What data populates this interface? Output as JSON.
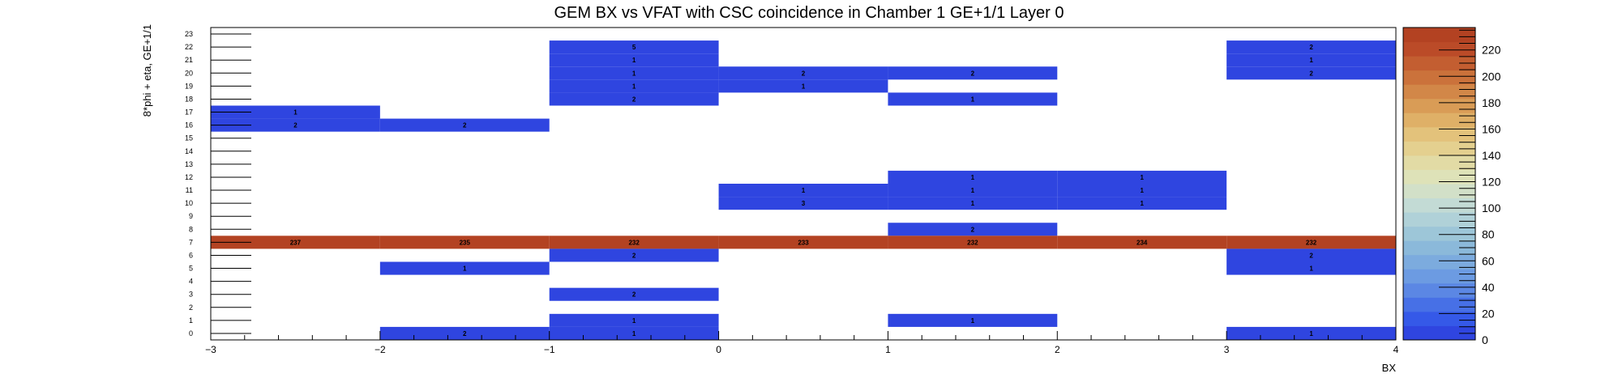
{
  "chart_data": {
    "type": "heatmap",
    "title": "GEM BX vs VFAT with CSC coincidence in Chamber 1 GE+1/1 Layer 0",
    "xlabel": "BX",
    "ylabel": "8*phi + eta, GE+1/1",
    "x_edges": [
      -3,
      -2,
      -1,
      0,
      1,
      2,
      3,
      4
    ],
    "x_ticks": [
      -3,
      -2,
      -1,
      0,
      1,
      2,
      3,
      4
    ],
    "y_bins": [
      0,
      1,
      2,
      3,
      4,
      5,
      6,
      7,
      8,
      9,
      10,
      11,
      12,
      13,
      14,
      15,
      16,
      17,
      18,
      19,
      20,
      21,
      22,
      23
    ],
    "zlim": [
      0,
      237
    ],
    "z_ticks": [
      0,
      20,
      40,
      60,
      80,
      100,
      120,
      140,
      160,
      180,
      200,
      220
    ],
    "cells": [
      [
        -3,
        17,
        1
      ],
      [
        -3,
        16,
        2
      ],
      [
        -3,
        7,
        237
      ],
      [
        -2,
        16,
        2
      ],
      [
        -2,
        7,
        235
      ],
      [
        -2,
        5,
        1
      ],
      [
        -2,
        0,
        2
      ],
      [
        -1,
        22,
        5
      ],
      [
        -1,
        21,
        1
      ],
      [
        -1,
        20,
        1
      ],
      [
        -1,
        19,
        1
      ],
      [
        -1,
        18,
        2
      ],
      [
        -1,
        7,
        232
      ],
      [
        -1,
        6,
        2
      ],
      [
        -1,
        3,
        2
      ],
      [
        -1,
        1,
        1
      ],
      [
        -1,
        0,
        1
      ],
      [
        0,
        20,
        2
      ],
      [
        0,
        19,
        1
      ],
      [
        0,
        11,
        1
      ],
      [
        0,
        10,
        3
      ],
      [
        0,
        7,
        233
      ],
      [
        1,
        20,
        2
      ],
      [
        1,
        18,
        1
      ],
      [
        1,
        12,
        1
      ],
      [
        1,
        11,
        1
      ],
      [
        1,
        10,
        1
      ],
      [
        1,
        8,
        2
      ],
      [
        1,
        7,
        232
      ],
      [
        1,
        1,
        1
      ],
      [
        2,
        12,
        1
      ],
      [
        2,
        11,
        1
      ],
      [
        2,
        10,
        1
      ],
      [
        2,
        7,
        234
      ],
      [
        3,
        22,
        2
      ],
      [
        3,
        21,
        1
      ],
      [
        3,
        20,
        2
      ],
      [
        3,
        7,
        232
      ],
      [
        3,
        6,
        2
      ],
      [
        3,
        5,
        1
      ],
      [
        3,
        0,
        1
      ]
    ],
    "palette": [
      "#2f45e0",
      "#3559e8",
      "#4770e6",
      "#5b87e4",
      "#6c9be2",
      "#7cabde",
      "#8bb9da",
      "#9dc6d8",
      "#b0d1d8",
      "#c3dbd5",
      "#d2e0c8",
      "#dee2b8",
      "#e2dba5",
      "#e4d08f",
      "#e3c27b",
      "#dfb067",
      "#d99c56",
      "#d28748",
      "#cb723b",
      "#c35e31",
      "#bb4b28",
      "#b34222"
    ],
    "grid": false,
    "legend": "colorbar-right"
  }
}
